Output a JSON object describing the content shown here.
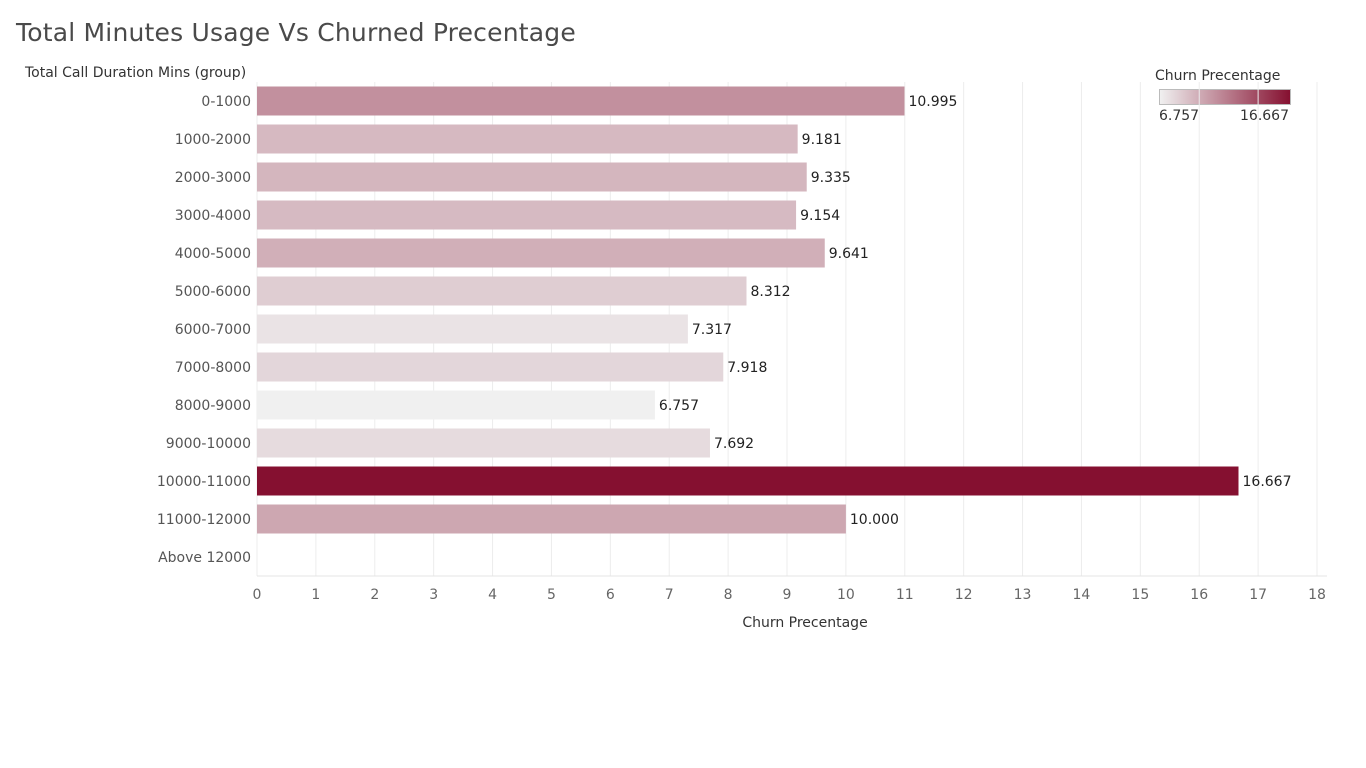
{
  "title": "Total Minutes Usage Vs Churned Precentage",
  "legend": {
    "title": "Churn Precentage",
    "min_label": "6.757",
    "max_label": "16.667",
    "color_low": "#f0f0f0",
    "color_high": "#851030"
  },
  "chart_data": {
    "type": "bar",
    "orientation": "horizontal",
    "ylabel": "Total Call Duration Mins (group)",
    "xlabel": "Churn Precentage",
    "categories": [
      "0-1000",
      "1000-2000",
      "2000-3000",
      "3000-4000",
      "4000-5000",
      "5000-6000",
      "6000-7000",
      "7000-8000",
      "8000-9000",
      "9000-10000",
      "10000-11000",
      "11000-12000",
      "Above 12000"
    ],
    "values": [
      10.995,
      9.181,
      9.335,
      9.154,
      9.641,
      8.312,
      7.317,
      7.918,
      6.757,
      7.692,
      16.667,
      10.0,
      null
    ],
    "data_labels": [
      "10.995",
      "9.181",
      "9.335",
      "9.154",
      "9.641",
      "8.312",
      "7.317",
      "7.918",
      "6.757",
      "7.692",
      "16.667",
      "10.000",
      ""
    ],
    "xlim": [
      0,
      18
    ],
    "xticks": [
      "0",
      "1",
      "2",
      "3",
      "4",
      "5",
      "6",
      "7",
      "8",
      "9",
      "10",
      "11",
      "12",
      "13",
      "14",
      "15",
      "16",
      "17",
      "18"
    ],
    "grid": true,
    "legend_position": "top-right"
  }
}
